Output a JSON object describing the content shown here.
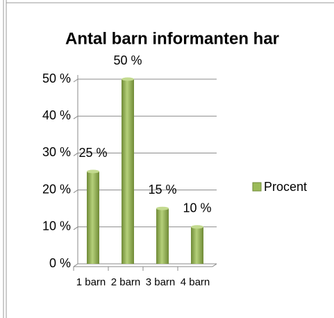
{
  "chart_data": {
    "type": "bar",
    "title": "Antal barn informanten har",
    "categories": [
      "1 barn",
      "2 barn",
      "3 barn",
      "4 barn"
    ],
    "series": [
      {
        "name": "Procent",
        "color": "#9bbb59",
        "values": [
          25,
          50,
          15,
          10
        ],
        "value_labels": [
          "25 %",
          "50 %",
          "15 %",
          "10 %"
        ]
      }
    ],
    "ylim": [
      0,
      50
    ],
    "yticks": [
      {
        "value": 0,
        "label": "0 %"
      },
      {
        "value": 10,
        "label": "10 %"
      },
      {
        "value": 20,
        "label": "20 %"
      },
      {
        "value": 30,
        "label": "30 %"
      },
      {
        "value": 40,
        "label": "40 %"
      },
      {
        "value": 50,
        "label": "50 %"
      }
    ],
    "grid": true,
    "legend": "right"
  }
}
